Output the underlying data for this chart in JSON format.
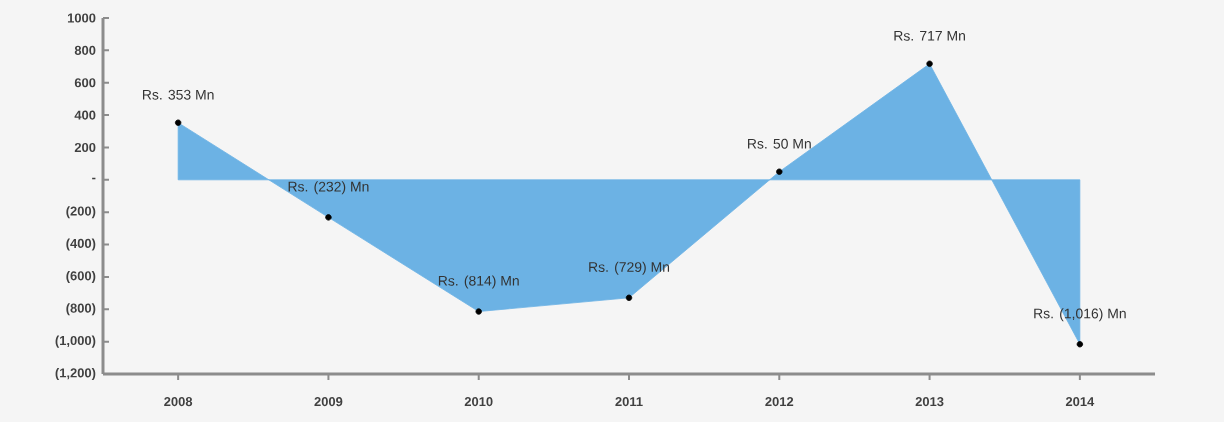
{
  "chart_data": {
    "type": "area",
    "categories": [
      "2008",
      "2009",
      "2010",
      "2011",
      "2012",
      "2013",
      "2014"
    ],
    "series": [
      {
        "color": "#6cb2e4",
        "values": [
          353,
          -232,
          -814,
          -729,
          50,
          717,
          -1016
        ],
        "value_labels": [
          "Rs. 353 Mn",
          "Rs. (232) Mn",
          "Rs. (814) Mn",
          "Rs. (729) Mn",
          "Rs. 50 Mn",
          "Rs. 717 Mn",
          "Rs. (1,016) Mn"
        ]
      }
    ],
    "ylim": [
      -1200,
      1000
    ],
    "yticks": [
      1000,
      800,
      600,
      400,
      200,
      {
        "value": 0,
        "label": "-"
      },
      {
        "value": -200,
        "label": "(200)"
      },
      {
        "value": -400,
        "label": "(400)"
      },
      {
        "value": -600,
        "label": "(600)"
      },
      {
        "value": -800,
        "label": "(800)"
      },
      {
        "value": -1000,
        "label": "(1,000)"
      },
      {
        "value": -1200,
        "label": "(1,200)"
      }
    ],
    "marker": "circle",
    "grid": false
  }
}
